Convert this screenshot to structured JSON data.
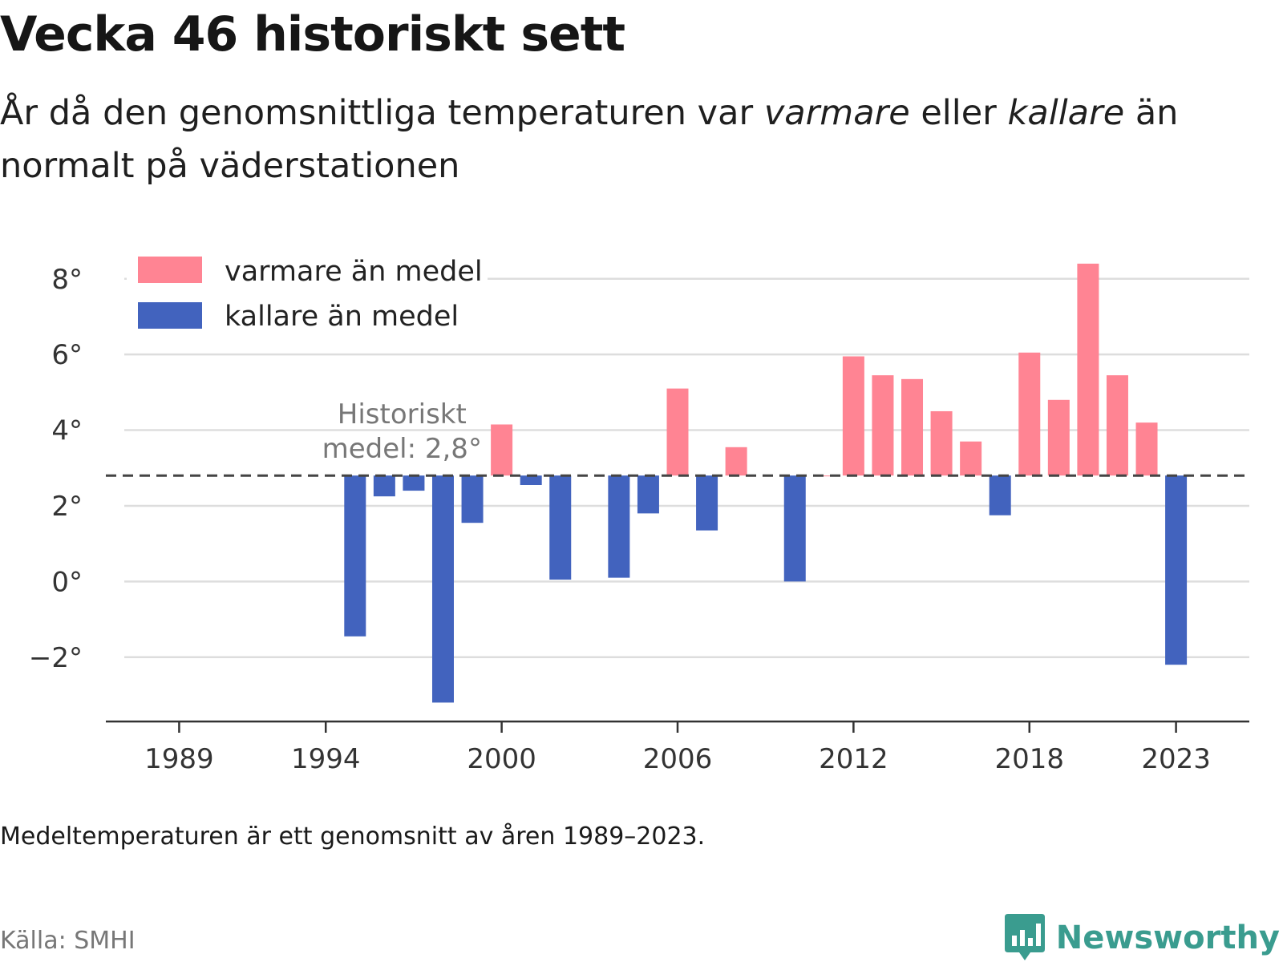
{
  "title": "Vecka 46 historiskt sett",
  "subtitle": {
    "p1": "År då den genomsnittliga temperaturen var ",
    "warm": "varmare",
    "p2": " eller ",
    "cold": "kallare",
    "p3": " än normalt på väderstationen"
  },
  "note": "Medeltemperaturen är ett genomsnitt av åren 1989–2023.",
  "source": "Källa: SMHI",
  "brand": {
    "name": "Newsworthy",
    "icon": "bar-chart-speech-bubble-icon",
    "color": "#3a9c8f"
  },
  "colors": {
    "warm": "#ff8493",
    "cold": "#4263be",
    "grid": "#dddddd",
    "axis": "#333333",
    "reference": "#444444"
  },
  "chart_data": {
    "type": "bar",
    "title": "Vecka 46 historiskt sett",
    "x": [
      1989,
      1990,
      1991,
      1992,
      1993,
      1994,
      1995,
      1996,
      1997,
      1998,
      1999,
      2000,
      2001,
      2002,
      2003,
      2004,
      2005,
      2006,
      2007,
      2008,
      2009,
      2010,
      2011,
      2012,
      2013,
      2014,
      2015,
      2016,
      2017,
      2018,
      2019,
      2020,
      2021,
      2022,
      2023
    ],
    "values": [
      null,
      null,
      null,
      null,
      null,
      null,
      -1.45,
      2.25,
      2.4,
      -3.2,
      1.55,
      4.15,
      2.55,
      0.05,
      null,
      0.1,
      1.8,
      5.1,
      1.35,
      3.55,
      null,
      0.0,
      2.8,
      5.95,
      5.45,
      5.35,
      4.5,
      3.7,
      1.75,
      6.05,
      4.8,
      8.4,
      5.45,
      4.2,
      -2.2
    ],
    "reference": {
      "value": 2.8,
      "label_line1": "Historiskt",
      "label_line2": "medel: 2,8°"
    },
    "xticks": [
      "1989",
      "1994",
      "2000",
      "2006",
      "2012",
      "2018",
      "2023"
    ],
    "xtick_values": [
      1989,
      1994,
      2000,
      2006,
      2012,
      2018,
      2023
    ],
    "yticks": [
      "−2°",
      "0°",
      "2°",
      "4°",
      "6°",
      "8°"
    ],
    "ytick_values": [
      -2,
      0,
      2,
      4,
      6,
      8
    ],
    "ylim": [
      -3.7,
      8.8
    ],
    "xlim": [
      1986.5,
      2025.5
    ],
    "grid": true,
    "legend_position": "top-left",
    "legend": [
      {
        "label": "varmare än medel",
        "color": "#ff8493"
      },
      {
        "label": "kallare än medel",
        "color": "#4263be"
      }
    ]
  }
}
